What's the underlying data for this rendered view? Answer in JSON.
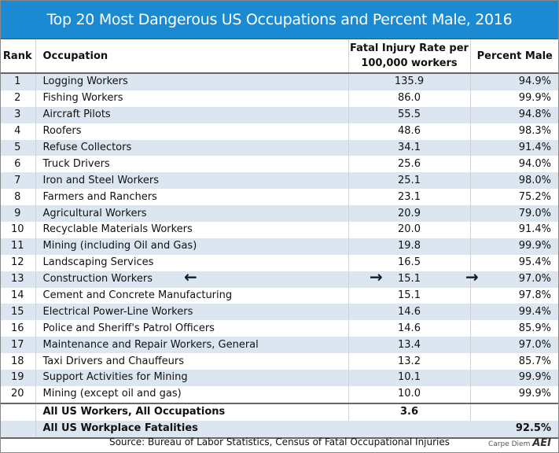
{
  "title": "Top 20 Most Dangerous US Occupations and Percent Male, 2016",
  "headers": {
    "rank": "Rank",
    "occupation": "Occupation",
    "rate_line1": "Fatal Injury Rate per",
    "rate_line2": "100,000 workers",
    "male": "Percent Male"
  },
  "rows": [
    {
      "rank": "1",
      "occupation": "Logging Workers",
      "rate": "135.9",
      "male": "94.9%"
    },
    {
      "rank": "2",
      "occupation": "Fishing Workers",
      "rate": "86.0",
      "male": "99.9%"
    },
    {
      "rank": "3",
      "occupation": "Aircraft Pilots",
      "rate": "55.5",
      "male": "94.8%"
    },
    {
      "rank": "4",
      "occupation": "Roofers",
      "rate": "48.6",
      "male": "98.3%"
    },
    {
      "rank": "5",
      "occupation": "Refuse Collectors",
      "rate": "34.1",
      "male": "91.4%"
    },
    {
      "rank": "6",
      "occupation": "Truck Drivers",
      "rate": "25.6",
      "male": "94.0%"
    },
    {
      "rank": "7",
      "occupation": "Iron and Steel Workers",
      "rate": "25.1",
      "male": "98.0%"
    },
    {
      "rank": "8",
      "occupation": "Farmers and Ranchers",
      "rate": "23.1",
      "male": "75.2%"
    },
    {
      "rank": "9",
      "occupation": "Agricultural Workers",
      "rate": "20.9",
      "male": "79.0%"
    },
    {
      "rank": "10",
      "occupation": "Recyclable Materials Workers",
      "rate": "20.0",
      "male": "91.4%"
    },
    {
      "rank": "11",
      "occupation": "Mining (including Oil and Gas)",
      "rate": "19.8",
      "male": "99.9%"
    },
    {
      "rank": "12",
      "occupation": "Landscaping Services",
      "rate": "16.5",
      "male": "95.4%"
    },
    {
      "rank": "13",
      "occupation": "Construction Workers",
      "rate": "15.1",
      "male": "97.0%"
    },
    {
      "rank": "14",
      "occupation": "Cement and Concrete Manufacturing",
      "rate": "15.1",
      "male": "97.8%"
    },
    {
      "rank": "15",
      "occupation": "Electrical Power-Line Workers",
      "rate": "14.6",
      "male": "99.4%"
    },
    {
      "rank": "16",
      "occupation": "Police and Sheriff's Patrol Officers",
      "rate": "14.6",
      "male": "85.9%"
    },
    {
      "rank": "17",
      "occupation": "Maintenance and Repair Workers, General",
      "rate": "13.4",
      "male": "97.0%"
    },
    {
      "rank": "18",
      "occupation": "Taxi Drivers and Chauffeurs",
      "rate": "13.2",
      "male": "85.7%"
    },
    {
      "rank": "19",
      "occupation": "Support Activities for Mining",
      "rate": "10.1",
      "male": "99.9%"
    },
    {
      "rank": "20",
      "occupation": "Mining (except oil and gas)",
      "rate": "10.0",
      "male": "99.9%"
    }
  ],
  "summary": [
    {
      "occupation": "All US Workers, All Occupations",
      "rate": "3.6",
      "male": ""
    },
    {
      "occupation": "All US Workplace Fatalities",
      "rate": "",
      "male": "92.5%"
    }
  ],
  "source": "Source: Bureau of Labor Statistics, Census of Fatal Occupational Injuries",
  "logo": {
    "text": "Carpe Diem",
    "mark": "AEI"
  },
  "colors": {
    "title_bg": "#1b8ad3",
    "stripe": "#dce6f1"
  }
}
